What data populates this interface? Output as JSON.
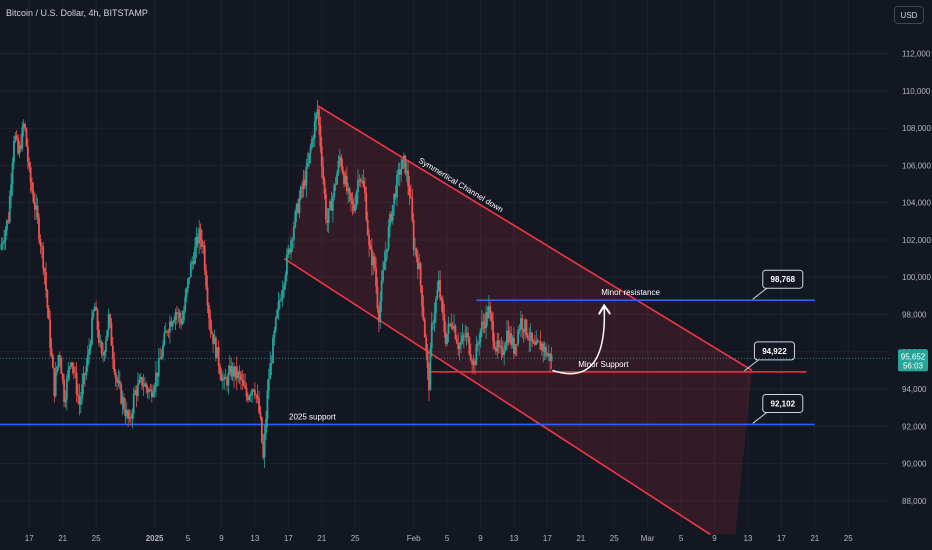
{
  "header": {
    "symbol_title": "Bitcoin / U.S. Dollar, 4h, BITSTAMP",
    "currency_button": "USD"
  },
  "colors": {
    "background": "#131722",
    "grid": "#1e222d",
    "axis_text": "#b2b5be",
    "candle_up": "#26a69a",
    "candle_down": "#ef5350",
    "channel_line": "#f23645",
    "channel_fill": "#f2364530",
    "level_line": "#2962ff",
    "price_badge": "#26a69a"
  },
  "chart_data": {
    "type": "candlestick",
    "title": "Bitcoin / U.S. Dollar, 4h, BITSTAMP",
    "ylim": [
      86600,
      113800
    ],
    "y_ticks": [
      "112,000",
      "110,000",
      "108,000",
      "106,000",
      "104,000",
      "102,000",
      "100,000",
      "98,000",
      "96,000",
      "94,000",
      "92,000",
      "90,000",
      "88,000"
    ],
    "y_tick_values": [
      112000,
      110000,
      108000,
      106000,
      104000,
      102000,
      100000,
      98000,
      96000,
      94000,
      92000,
      90000,
      88000
    ],
    "x_ticks": [
      "17",
      "21",
      "25",
      "2025",
      "5",
      "9",
      "13",
      "17",
      "21",
      "25",
      "Feb",
      "5",
      "9",
      "13",
      "17",
      "21",
      "25",
      "Mar",
      "5",
      "9",
      "13",
      "17",
      "21",
      "25"
    ],
    "x_tick_days": [
      -15,
      -11,
      -7,
      0,
      4,
      8,
      12,
      16,
      20,
      24,
      31,
      35,
      39,
      43,
      47,
      51,
      55,
      59,
      63,
      67,
      71,
      75,
      79,
      83
    ],
    "x_range_days": [
      -18.5,
      88
    ],
    "price_path": [
      [
        -18.5,
        101500
      ],
      [
        -17.5,
        103200
      ],
      [
        -16.8,
        107800
      ],
      [
        -16.3,
        106500
      ],
      [
        -15.6,
        108300
      ],
      [
        -15.0,
        105500
      ],
      [
        -14.0,
        103000
      ],
      [
        -13.2,
        100500
      ],
      [
        -12.6,
        97000
      ],
      [
        -12.0,
        94000
      ],
      [
        -11.4,
        96200
      ],
      [
        -10.8,
        93500
      ],
      [
        -10.0,
        95800
      ],
      [
        -9.0,
        93200
      ],
      [
        -8.0,
        95600
      ],
      [
        -7.2,
        98500
      ],
      [
        -6.3,
        95500
      ],
      [
        -5.5,
        97800
      ],
      [
        -4.6,
        94500
      ],
      [
        -3.6,
        93000
      ],
      [
        -3.0,
        92100
      ],
      [
        -2.4,
        93800
      ],
      [
        -1.5,
        94400
      ],
      [
        -0.5,
        93800
      ],
      [
        0.5,
        95200
      ],
      [
        1.5,
        97300
      ],
      [
        2.5,
        98200
      ],
      [
        3.3,
        97600
      ],
      [
        4.2,
        100300
      ],
      [
        5.3,
        102300
      ],
      [
        5.8,
        101800
      ],
      [
        6.6,
        97500
      ],
      [
        7.5,
        95800
      ],
      [
        8.3,
        94200
      ],
      [
        9.2,
        95000
      ],
      [
        10.2,
        94600
      ],
      [
        11.0,
        93600
      ],
      [
        11.9,
        94300
      ],
      [
        12.6,
        92500
      ],
      [
        13.0,
        90200
      ],
      [
        13.6,
        94400
      ],
      [
        14.6,
        97800
      ],
      [
        15.6,
        100300
      ],
      [
        16.6,
        102700
      ],
      [
        17.4,
        104300
      ],
      [
        18.2,
        105600
      ],
      [
        19.0,
        107800
      ],
      [
        19.5,
        109000
      ],
      [
        20.0,
        106300
      ],
      [
        20.6,
        102800
      ],
      [
        21.4,
        104500
      ],
      [
        22.2,
        106500
      ],
      [
        23.1,
        104400
      ],
      [
        23.8,
        103600
      ],
      [
        24.5,
        105700
      ],
      [
        25.2,
        104300
      ],
      [
        25.7,
        101300
      ],
      [
        26.3,
        100700
      ],
      [
        26.8,
        97900
      ],
      [
        27.5,
        100800
      ],
      [
        28.1,
        102800
      ],
      [
        28.7,
        104400
      ],
      [
        29.3,
        105700
      ],
      [
        29.9,
        106200
      ],
      [
        30.6,
        104300
      ],
      [
        31.0,
        101800
      ],
      [
        31.6,
        100700
      ],
      [
        32.2,
        97800
      ],
      [
        32.8,
        94000
      ],
      [
        33.2,
        97500
      ],
      [
        34.0,
        99600
      ],
      [
        34.8,
        96700
      ],
      [
        35.6,
        97800
      ],
      [
        36.4,
        96300
      ],
      [
        37.3,
        96900
      ],
      [
        38.2,
        95300
      ],
      [
        39.0,
        97200
      ],
      [
        40.0,
        98200
      ],
      [
        40.8,
        96300
      ],
      [
        41.5,
        95800
      ],
      [
        42.2,
        97100
      ],
      [
        43.0,
        96200
      ],
      [
        43.8,
        97700
      ],
      [
        44.6,
        97100
      ],
      [
        45.4,
        96100
      ],
      [
        46.3,
        96400
      ],
      [
        47.0,
        95800
      ],
      [
        47.6,
        95652
      ]
    ],
    "channel": {
      "upper_line": [
        [
          19.5,
          109200
        ],
        [
          71.5,
          95000
        ]
      ],
      "lower_line": [
        [
          15.5,
          101000
        ],
        [
          66.5,
          86200
        ]
      ],
      "fill_polygon": [
        [
          19.5,
          109200
        ],
        [
          71.5,
          95000
        ],
        [
          69.5,
          86200
        ],
        [
          66.5,
          86200
        ],
        [
          15.5,
          101000
        ]
      ]
    },
    "levels": [
      {
        "label": "Minor resistance",
        "value": 98768,
        "value_label": "98,768",
        "from_day": 38.5,
        "to_day": 79
      },
      {
        "label": "Minor Support",
        "value": 94922,
        "value_label": "94,922",
        "from_day": 33.0,
        "to_day": 78
      },
      {
        "label": "2025 support",
        "value": 92102,
        "value_label": "92,102",
        "from_day": -18.5,
        "to_day": 79
      }
    ],
    "annotations": [
      {
        "text": "Symmertical Channel down"
      }
    ],
    "projection_arrow": {
      "from": [
        47.6,
        95000
      ],
      "to": [
        53.8,
        98400
      ]
    },
    "last_price": {
      "value": 95652,
      "label": "95,652",
      "countdown": "56:03"
    }
  }
}
